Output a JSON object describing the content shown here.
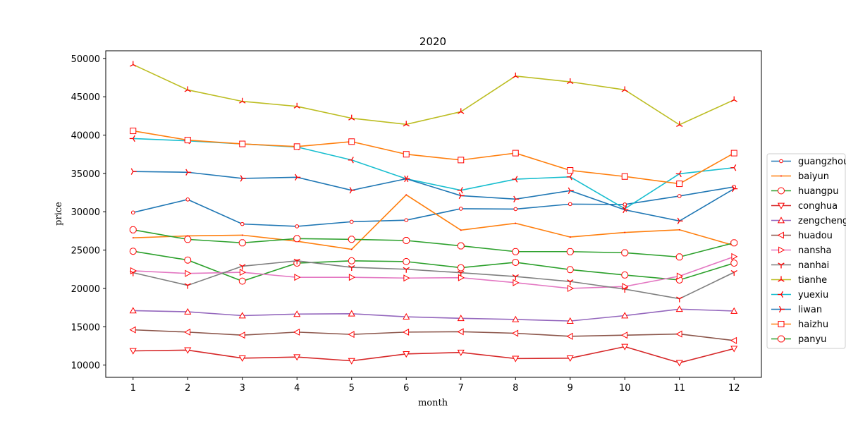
{
  "chart_data": {
    "type": "line",
    "title": "2020",
    "xlabel": "month",
    "ylabel": "price",
    "x": [
      1,
      2,
      3,
      4,
      5,
      6,
      7,
      8,
      9,
      10,
      11,
      12
    ],
    "xticks": [
      "1",
      "2",
      "3",
      "4",
      "5",
      "6",
      "7",
      "8",
      "9",
      "10",
      "11",
      "12"
    ],
    "yticks": [
      "10000",
      "15000",
      "20000",
      "25000",
      "30000",
      "35000",
      "40000",
      "45000",
      "50000"
    ],
    "ylim": [
      8400,
      51000
    ],
    "xlim": [
      0.5,
      12.5
    ],
    "grid": false,
    "legend_position": "right",
    "marker_edge_color": "#ff0000",
    "series": [
      {
        "name": "guangzhou",
        "color": "#1f77b4",
        "marker": "point",
        "values": [
          29900,
          31600,
          28400,
          28100,
          28700,
          28900,
          30400,
          30350,
          31000,
          30950,
          32050,
          33250
        ]
      },
      {
        "name": "baiyun",
        "color": "#ff7f0e",
        "marker": "pixel",
        "values": [
          26600,
          26850,
          26950,
          26150,
          25100,
          32200,
          27600,
          28500,
          26700,
          27300,
          27650,
          25600
        ]
      },
      {
        "name": "huangpu",
        "color": "#2ca02c",
        "marker": "circle",
        "values": [
          24850,
          23700,
          20950,
          23300,
          23600,
          23500,
          22700,
          23400,
          22450,
          21750,
          21100,
          23300
        ]
      },
      {
        "name": "conghua",
        "color": "#d62728",
        "marker": "triangle_down",
        "values": [
          11850,
          11950,
          10900,
          11050,
          10550,
          11450,
          11650,
          10850,
          10900,
          12400,
          10300,
          12150
        ]
      },
      {
        "name": "zengcheng",
        "color": "#9467bd",
        "marker": "triangle_up",
        "values": [
          17100,
          16950,
          16450,
          16650,
          16700,
          16300,
          16100,
          15950,
          15750,
          16450,
          17300,
          17050
        ]
      },
      {
        "name": "huadou",
        "color": "#8c564b",
        "marker": "triangle_left",
        "values": [
          14600,
          14300,
          13900,
          14300,
          14000,
          14300,
          14350,
          14150,
          13750,
          13900,
          14050,
          13200
        ]
      },
      {
        "name": "nansha",
        "color": "#e377c2",
        "marker": "triangle_right",
        "values": [
          22300,
          21950,
          22100,
          21450,
          21450,
          21350,
          21400,
          20750,
          20000,
          20250,
          21600,
          24150
        ]
      },
      {
        "name": "nanhai",
        "color": "#7f7f7f",
        "marker": "tri_down",
        "values": [
          22050,
          20400,
          22900,
          23600,
          22750,
          22500,
          22050,
          21550,
          20900,
          19900,
          18650,
          22100
        ]
      },
      {
        "name": "tianhe",
        "color": "#bcbd22",
        "marker": "tri_up",
        "values": [
          49200,
          45900,
          44400,
          43750,
          42200,
          41400,
          43050,
          47700,
          46950,
          45900,
          41350,
          44600
        ]
      },
      {
        "name": "yuexiu",
        "color": "#17becf",
        "marker": "tri_left",
        "values": [
          39550,
          39250,
          38850,
          38450,
          36750,
          34300,
          32800,
          34250,
          34550,
          30400,
          34950,
          35750
        ]
      },
      {
        "name": "liwan",
        "color": "#1f77b4",
        "marker": "tri_right",
        "values": [
          35250,
          35150,
          34350,
          34500,
          32800,
          34300,
          32100,
          31650,
          32750,
          30250,
          28800,
          33000
        ]
      },
      {
        "name": "haizhu",
        "color": "#ff7f0e",
        "marker": "square",
        "values": [
          40550,
          39350,
          38850,
          38500,
          39150,
          37500,
          36750,
          37650,
          35400,
          34600,
          33650,
          37650
        ]
      },
      {
        "name": "panyu",
        "color": "#2ca02c",
        "marker": "octagon",
        "values": [
          27650,
          26400,
          25950,
          26500,
          26400,
          26250,
          25550,
          24800,
          24800,
          24650,
          24100,
          25950
        ]
      }
    ]
  }
}
